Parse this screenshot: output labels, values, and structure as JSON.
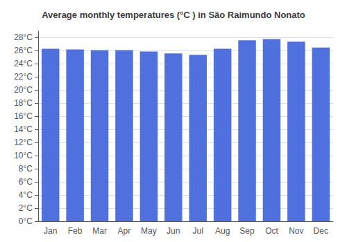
{
  "chart_data": {
    "type": "bar",
    "title": "Average monthly temperatures (°C ) in São Raimundo Nonato",
    "categories": [
      "Jan",
      "Feb",
      "Mar",
      "Apr",
      "May",
      "Jun",
      "Jul",
      "Aug",
      "Sep",
      "Oct",
      "Nov",
      "Dec"
    ],
    "values": [
      26.3,
      26.2,
      26.1,
      26.1,
      25.9,
      25.6,
      25.4,
      26.3,
      27.6,
      27.8,
      27.4,
      26.5
    ],
    "ylim": [
      0,
      29
    ],
    "yticks": [
      {
        "value": 0,
        "label": "0°C"
      },
      {
        "value": 2,
        "label": "2°C"
      },
      {
        "value": 4,
        "label": "4°C"
      },
      {
        "value": 6,
        "label": "6°C"
      },
      {
        "value": 8,
        "label": "8°C"
      },
      {
        "value": 10,
        "label": "10°C"
      },
      {
        "value": 12,
        "label": "12°C"
      },
      {
        "value": 14,
        "label": "14°C"
      },
      {
        "value": 16,
        "label": "16°C"
      },
      {
        "value": 18,
        "label": "18°C"
      },
      {
        "value": 20,
        "label": "20°C"
      },
      {
        "value": 22,
        "label": "22°C"
      },
      {
        "value": 24,
        "label": "24°C"
      },
      {
        "value": 26,
        "label": "26°C"
      },
      {
        "value": 28,
        "label": "28°C"
      }
    ],
    "grid": true
  }
}
